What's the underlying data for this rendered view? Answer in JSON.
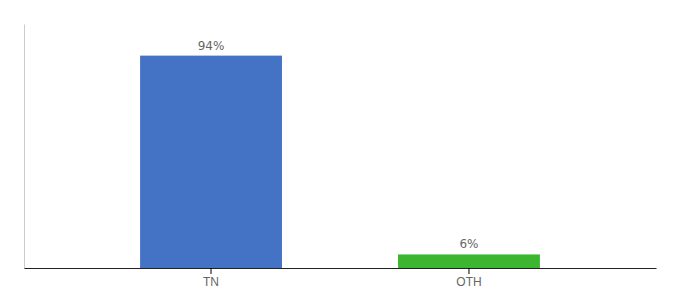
{
  "chart_data": {
    "type": "bar",
    "categories": [
      "TN",
      "OTH"
    ],
    "values": [
      94,
      6
    ],
    "value_labels": [
      "94%",
      "6%"
    ],
    "colors": [
      "#4472c4",
      "#3cb531"
    ],
    "ylim": [
      0,
      108
    ],
    "data_labels": true,
    "tick_labels": "x",
    "grid": false
  }
}
